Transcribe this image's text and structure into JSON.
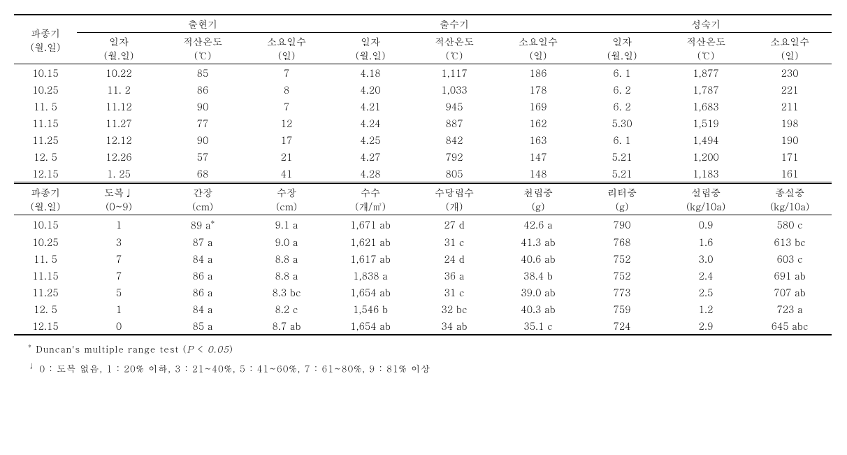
{
  "typography": {
    "base_fontsize_pt": 14,
    "footnote_fontsize_pt": 13,
    "font_family": "Malgun Gothic, Batang, serif",
    "text_color": "#000000",
    "background_color": "#ffffff",
    "border_color": "#000000"
  },
  "table1": {
    "row_header": {
      "label": "파종기",
      "unit": "(월.일)"
    },
    "groups": [
      {
        "label": "출현기",
        "cols": [
          {
            "label": "일자",
            "unit": "(월.일)"
          },
          {
            "label": "적산온도",
            "unit": "(℃)"
          },
          {
            "label": "소요일수",
            "unit": "(일)"
          }
        ]
      },
      {
        "label": "출수기",
        "cols": [
          {
            "label": "일자",
            "unit": "(월.일)"
          },
          {
            "label": "적산온도",
            "unit": "(℃)"
          },
          {
            "label": "소요일수",
            "unit": "(일)"
          }
        ]
      },
      {
        "label": "성숙기",
        "cols": [
          {
            "label": "일자",
            "unit": "(월.일)"
          },
          {
            "label": "적산온도",
            "unit": "(℃)"
          },
          {
            "label": "소요일수",
            "unit": "(일)"
          }
        ]
      }
    ],
    "rows": [
      [
        "10.15",
        "10.22",
        "85",
        "7",
        "4.18",
        "1,117",
        "186",
        "6. 1",
        "1,877",
        "230"
      ],
      [
        "10.25",
        "11. 2",
        "86",
        "8",
        "4.20",
        "1,033",
        "178",
        "6. 2",
        "1,787",
        "221"
      ],
      [
        "11. 5",
        "11.12",
        "90",
        "7",
        "4.21",
        "945",
        "169",
        "6. 2",
        "1,683",
        "211"
      ],
      [
        "11.15",
        "11.27",
        "77",
        "12",
        "4.24",
        "887",
        "162",
        "5.30",
        "1,519",
        "198"
      ],
      [
        "11.25",
        "12.12",
        "90",
        "17",
        "4.25",
        "842",
        "163",
        "6. 1",
        "1,494",
        "190"
      ],
      [
        "12. 5",
        "12.26",
        "57",
        "21",
        "4.27",
        "792",
        "147",
        "5.21",
        "1,200",
        "171"
      ],
      [
        "12.15",
        "1. 25",
        "68",
        "41",
        "4.28",
        "805",
        "148",
        "5.21",
        "1,183",
        "161"
      ]
    ]
  },
  "table2": {
    "cols": [
      {
        "label": "파종기",
        "unit": "(월.일)"
      },
      {
        "label": "도복♩",
        "unit": "(0~9)"
      },
      {
        "label": "간장",
        "unit": "(cm)"
      },
      {
        "label": "수장",
        "unit": "(cm)"
      },
      {
        "label": "수수",
        "unit": "(개/㎡)"
      },
      {
        "label": "수당립수",
        "unit": "(개)"
      },
      {
        "label": "천립중",
        "unit": "(g)"
      },
      {
        "label": "리터중",
        "unit": "(g)"
      },
      {
        "label": "설립중",
        "unit": "(kg/10a)"
      },
      {
        "label": "종실중",
        "unit": "(kg/10a)"
      }
    ],
    "rows": [
      [
        "10.15",
        "1",
        "89 a*",
        "9.1 a",
        "1,671 ab",
        "27 d",
        "42.6 a",
        "790",
        "0.9",
        "580 c"
      ],
      [
        "10.25",
        "3",
        "87 a",
        "9.0 a",
        "1,621 ab",
        "31 c",
        "41.3 ab",
        "768",
        "1.6",
        "613 bc"
      ],
      [
        "11. 5",
        "7",
        "84 a",
        "8.8 a",
        "1,617 ab",
        "24 d",
        "40.6 ab",
        "752",
        "3.0",
        "603 c"
      ],
      [
        "11.15",
        "7",
        "86 a",
        "8.8 a",
        "1,838 a",
        "36 a",
        "38.4 b",
        "752",
        "2.4",
        "691 ab"
      ],
      [
        "11.25",
        "5",
        "86 a",
        "8.3 bc",
        "1,654 ab",
        "31 c",
        "39.0 ab",
        "773",
        "2.5",
        "707 ab"
      ],
      [
        "12. 5",
        "1",
        "84 a",
        "8.2 c",
        "1,546 b",
        "32 bc",
        "40.3 ab",
        "759",
        "1.2",
        "723 a"
      ],
      [
        "12.15",
        "0",
        "85 a",
        "8.7 ab",
        "1,654 ab",
        "34 ab",
        "35.1 c",
        "724",
        "2.9",
        "645 abc"
      ]
    ]
  },
  "footnotes": {
    "f1_marker": "*",
    "f1_text_pre": "Duncan's multiple range test (",
    "f1_p": "P",
    "f1_lt": " < ",
    "f1_val": "0.05",
    "f1_close": ")",
    "f2_marker": "♩",
    "f2_text": "0 : 도복 없음, 1 : 20% 이하, 3 : 21~40%, 5 : 41~60%, 7 : 61~80%, 9 : 81% 이상"
  }
}
